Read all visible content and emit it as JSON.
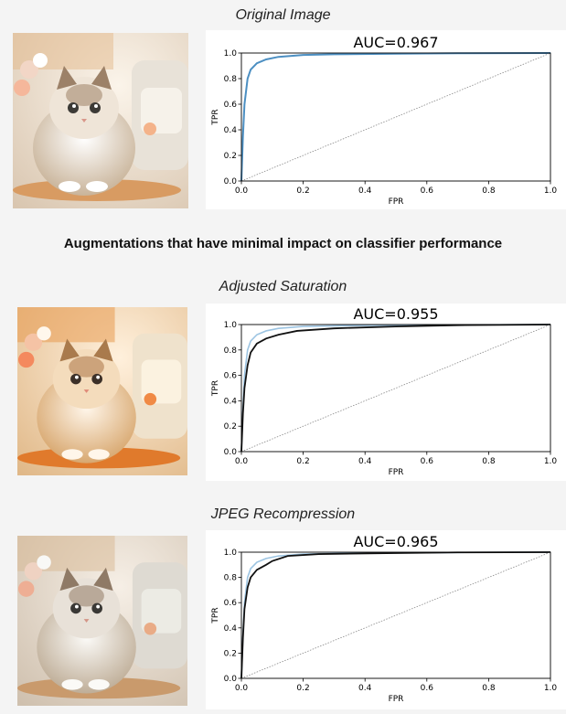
{
  "headings": {
    "section": "Augmentations that have minimal impact on classifier performance"
  },
  "panels": [
    {
      "caption": "Original Image"
    },
    {
      "caption": "Adjusted Saturation"
    },
    {
      "caption": "JPEG Recompression"
    }
  ],
  "colors": {
    "baseline": "#4c8fc2",
    "baseline_light": "#9cc4e2",
    "augmented": "#111111",
    "chance": "#888888"
  },
  "chart_data": [
    {
      "type": "line",
      "title": "AUC=0.967",
      "xlabel": "FPR",
      "ylabel": "TPR",
      "xlim": [
        0,
        1
      ],
      "ylim": [
        0,
        1
      ],
      "xticks": [
        "0.0",
        "0.2",
        "0.4",
        "0.6",
        "0.8",
        "1.0"
      ],
      "yticks": [
        "0.0",
        "0.2",
        "0.4",
        "0.6",
        "0.8",
        "1.0"
      ],
      "series": [
        {
          "x": [
            0,
            0.005,
            0.01,
            0.02,
            0.03,
            0.05,
            0.08,
            0.12,
            0.2,
            0.3,
            0.5,
            0.7,
            1.0
          ],
          "y": [
            0,
            0.35,
            0.6,
            0.8,
            0.87,
            0.92,
            0.95,
            0.97,
            0.985,
            0.99,
            0.995,
            0.998,
            1.0
          ]
        },
        {
          "x": [
            0,
            1
          ],
          "y": [
            0,
            1
          ]
        }
      ]
    },
    {
      "type": "line",
      "title": "AUC=0.955",
      "xlabel": "FPR",
      "ylabel": "TPR",
      "xlim": [
        0,
        1
      ],
      "ylim": [
        0,
        1
      ],
      "xticks": [
        "0.0",
        "0.2",
        "0.4",
        "0.6",
        "0.8",
        "1.0"
      ],
      "yticks": [
        "0.0",
        "0.2",
        "0.4",
        "0.6",
        "0.8",
        "1.0"
      ],
      "series": [
        {
          "x": [
            0,
            0.005,
            0.01,
            0.02,
            0.03,
            0.05,
            0.08,
            0.12,
            0.2,
            0.3,
            0.5,
            0.7,
            1.0
          ],
          "y": [
            0,
            0.35,
            0.6,
            0.8,
            0.87,
            0.92,
            0.95,
            0.97,
            0.985,
            0.99,
            0.995,
            0.998,
            1.0
          ]
        },
        {
          "x": [
            0,
            0.005,
            0.01,
            0.02,
            0.03,
            0.05,
            0.08,
            0.12,
            0.18,
            0.3,
            0.5,
            0.7,
            1.0
          ],
          "y": [
            0,
            0.3,
            0.5,
            0.68,
            0.78,
            0.85,
            0.89,
            0.92,
            0.95,
            0.97,
            0.985,
            0.995,
            1.0
          ]
        },
        {
          "x": [
            0,
            1
          ],
          "y": [
            0,
            1
          ]
        }
      ]
    },
    {
      "type": "line",
      "title": "AUC=0.965",
      "xlabel": "FPR",
      "ylabel": "TPR",
      "xlim": [
        0,
        1
      ],
      "ylim": [
        0,
        1
      ],
      "xticks": [
        "0.0",
        "0.2",
        "0.4",
        "0.6",
        "0.8",
        "1.0"
      ],
      "yticks": [
        "0.0",
        "0.2",
        "0.4",
        "0.6",
        "0.8",
        "1.0"
      ],
      "series": [
        {
          "x": [
            0,
            0.005,
            0.01,
            0.02,
            0.03,
            0.05,
            0.08,
            0.12,
            0.2,
            0.3,
            0.5,
            0.7,
            1.0
          ],
          "y": [
            0,
            0.35,
            0.6,
            0.8,
            0.87,
            0.92,
            0.95,
            0.97,
            0.985,
            0.99,
            0.995,
            0.998,
            1.0
          ]
        },
        {
          "x": [
            0,
            0.005,
            0.01,
            0.02,
            0.03,
            0.05,
            0.08,
            0.1,
            0.15,
            0.25,
            0.5,
            0.7,
            1.0
          ],
          "y": [
            0,
            0.32,
            0.55,
            0.72,
            0.8,
            0.86,
            0.9,
            0.93,
            0.97,
            0.985,
            0.993,
            0.998,
            1.0
          ]
        },
        {
          "x": [
            0,
            1
          ],
          "y": [
            0,
            1
          ]
        }
      ]
    }
  ]
}
